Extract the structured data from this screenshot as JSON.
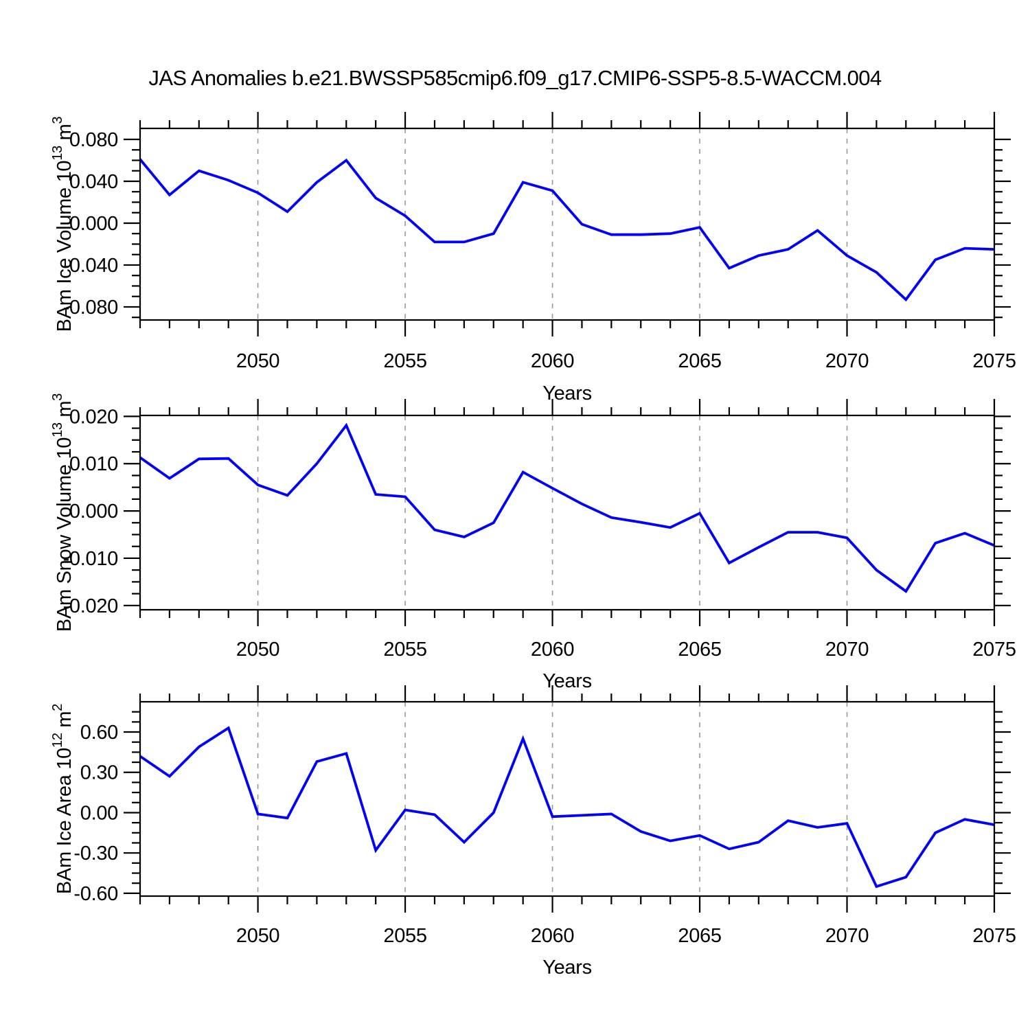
{
  "title": "JAS Anomalies b.e21.BWSSP585cmip6.f09_g17.CMIP6-SSP5-8.5-WACCM.004",
  "colors": {
    "line": "#0000ff",
    "axis": "#000000",
    "grid": "#999999",
    "text": "#000000",
    "background": "#ffffff"
  },
  "x_axis": {
    "label": "Years",
    "start": 2046,
    "end": 2075,
    "minor_step": 1,
    "labeled_ticks": [
      2050,
      2055,
      2060,
      2065,
      2070,
      2075
    ],
    "gridline_years": [
      2050,
      2055,
      2060,
      2065,
      2070
    ]
  },
  "chart_data": [
    {
      "type": "line",
      "name": "bam-ice-volume",
      "ylabel_runs": [
        {
          "t": "BAm Ice Volume 10"
        },
        {
          "t": "13",
          "sup": true
        },
        {
          "t": " m"
        },
        {
          "t": "3",
          "sup": true
        }
      ],
      "ylabel_plain": "BAm Ice Volume 10^13 m^3",
      "xlabel": "Years",
      "ylim": [
        -0.0925,
        0.0905
      ],
      "ytick_values": [
        0.08,
        0.04,
        0.0,
        -0.04,
        -0.08
      ],
      "ytick_labels": [
        "0.080",
        "0.040",
        "0.000",
        "-0.040",
        "-0.080"
      ],
      "y_minor_step": 0.01,
      "x": [
        2046,
        2047,
        2048,
        2049,
        2050,
        2051,
        2052,
        2053,
        2054,
        2055,
        2056,
        2057,
        2058,
        2059,
        2060,
        2061,
        2062,
        2063,
        2064,
        2065,
        2066,
        2067,
        2068,
        2069,
        2070,
        2071,
        2072,
        2073,
        2074,
        2075
      ],
      "values": [
        0.061,
        0.027,
        0.05,
        0.041,
        0.029,
        0.011,
        0.039,
        0.06,
        0.024,
        0.007,
        -0.018,
        -0.018,
        -0.01,
        0.039,
        0.031,
        -0.001,
        -0.011,
        -0.011,
        -0.01,
        -0.004,
        -0.043,
        -0.031,
        -0.025,
        -0.007,
        -0.031,
        -0.047,
        -0.073,
        -0.035,
        -0.024,
        -0.025
      ]
    },
    {
      "type": "line",
      "name": "bam-snow-volume",
      "ylabel_runs": [
        {
          "t": "BAm Snow Volume 10"
        },
        {
          "t": "13",
          "sup": true
        },
        {
          "t": " m"
        },
        {
          "t": "3",
          "sup": true
        }
      ],
      "ylabel_plain": "BAm Snow Volume 10^13 m^3",
      "xlabel": "Years",
      "ylim": [
        -0.0209,
        0.0202
      ],
      "ytick_values": [
        0.02,
        0.01,
        0.0,
        -0.01,
        -0.02
      ],
      "ytick_labels": [
        "0.020",
        "0.010",
        "0.000",
        "-0.010",
        "-0.020"
      ],
      "y_minor_step": 0.0025,
      "x": [
        2046,
        2047,
        2048,
        2049,
        2050,
        2051,
        2052,
        2053,
        2054,
        2055,
        2056,
        2057,
        2058,
        2059,
        2060,
        2061,
        2062,
        2063,
        2064,
        2065,
        2066,
        2067,
        2068,
        2069,
        2070,
        2071,
        2072,
        2073,
        2074,
        2075
      ],
      "values": [
        0.0113,
        0.0069,
        0.011,
        0.0111,
        0.0055,
        0.0033,
        0.01,
        0.0181,
        0.0035,
        0.003,
        -0.004,
        -0.0055,
        -0.0025,
        0.0082,
        0.0048,
        0.0015,
        -0.0014,
        -0.0024,
        -0.0035,
        -0.0005,
        -0.011,
        -0.0077,
        -0.0045,
        -0.0045,
        -0.0057,
        -0.0125,
        -0.017,
        -0.0068,
        -0.0047,
        -0.0073
      ]
    },
    {
      "type": "line",
      "name": "bam-ice-area",
      "ylabel_runs": [
        {
          "t": "BAm Ice Area 10"
        },
        {
          "t": "12",
          "sup": true
        },
        {
          "t": " m"
        },
        {
          "t": "2",
          "sup": true
        }
      ],
      "ylabel_plain": "BAm Ice Area 10^12 m^2",
      "xlabel": "Years",
      "ylim": [
        -0.621,
        0.825
      ],
      "ytick_values": [
        0.6,
        0.3,
        0.0,
        -0.3,
        -0.6
      ],
      "ytick_labels": [
        "0.60",
        "0.30",
        "0.00",
        "-0.30",
        "-0.60"
      ],
      "y_minor_step": 0.075,
      "x": [
        2046,
        2047,
        2048,
        2049,
        2050,
        2051,
        2052,
        2053,
        2054,
        2055,
        2056,
        2057,
        2058,
        2059,
        2060,
        2061,
        2062,
        2063,
        2064,
        2065,
        2066,
        2067,
        2068,
        2069,
        2070,
        2071,
        2072,
        2073,
        2074,
        2075
      ],
      "values": [
        0.42,
        0.27,
        0.49,
        0.63,
        -0.01,
        -0.04,
        0.38,
        0.44,
        -0.28,
        0.02,
        -0.015,
        -0.22,
        0.0,
        0.55,
        -0.03,
        -0.02,
        -0.01,
        -0.14,
        -0.21,
        -0.17,
        -0.27,
        -0.22,
        -0.06,
        -0.11,
        -0.08,
        -0.55,
        -0.48,
        -0.15,
        -0.05,
        -0.09
      ]
    }
  ]
}
